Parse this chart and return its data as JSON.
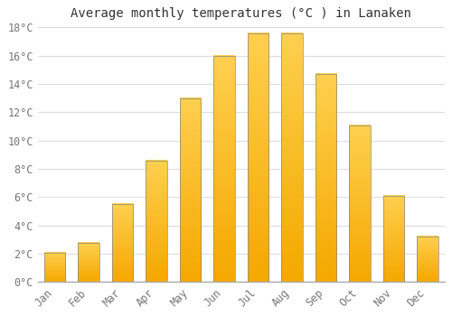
{
  "title": "Average monthly temperatures (°C ) in Lanaken",
  "months": [
    "Jan",
    "Feb",
    "Mar",
    "Apr",
    "May",
    "Jun",
    "Jul",
    "Aug",
    "Sep",
    "Oct",
    "Nov",
    "Dec"
  ],
  "values": [
    2.1,
    2.8,
    5.5,
    8.6,
    13.0,
    16.0,
    17.6,
    17.6,
    14.7,
    11.1,
    6.1,
    3.2
  ],
  "bar_color_bottom": "#F5A800",
  "bar_color_top": "#FFD050",
  "bar_edge_color": "#888888",
  "background_color": "#FFFFFF",
  "grid_color": "#DDDDDD",
  "text_color": "#777777",
  "ylim": [
    0,
    18
  ],
  "yticks": [
    0,
    2,
    4,
    6,
    8,
    10,
    12,
    14,
    16,
    18
  ],
  "ytick_labels": [
    "0°C",
    "2°C",
    "4°C",
    "6°C",
    "8°C",
    "10°C",
    "12°C",
    "14°C",
    "16°C",
    "18°C"
  ],
  "title_fontsize": 10,
  "tick_fontsize": 8.5
}
